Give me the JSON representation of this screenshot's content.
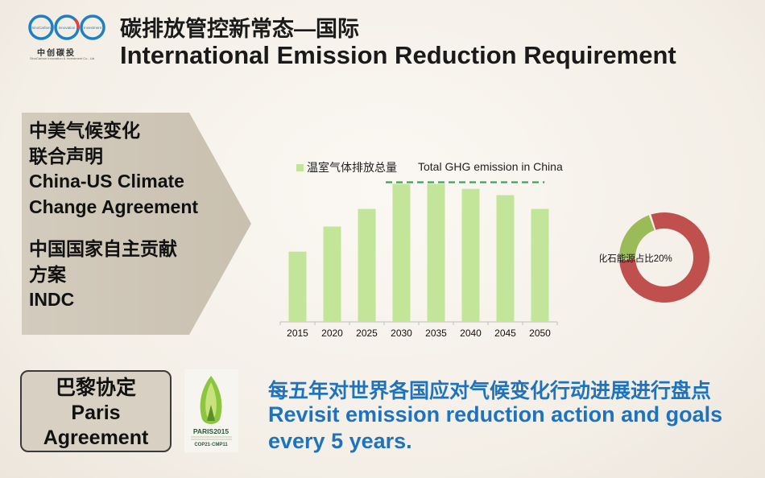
{
  "logo": {
    "ring_words": [
      "SinoCarbon",
      "Innovation",
      "Investment"
    ],
    "name_cn": "中创碳投",
    "name_en": "SinoCarbon Innovation & Investment Co., Ltd"
  },
  "title": {
    "cn": "碳排放管控新常态—国际",
    "en": "International Emission Reduction Requirement"
  },
  "arrow": {
    "lines_top": [
      "中美气候变化",
      "联合声明",
      "China-US Climate",
      "Change Agreement"
    ],
    "lines_bottom": [
      "中国国家自主贡献",
      "方案",
      "INDC"
    ]
  },
  "chart_data": {
    "type": "bar",
    "legend_cn": "温室气体排放总量",
    "legend_en": "Total GHG emission in China",
    "categories": [
      "2015",
      "2020",
      "2025",
      "2030",
      "2035",
      "2040",
      "2045",
      "2050"
    ],
    "values": [
      56,
      76,
      90,
      110,
      110,
      106,
      101,
      90
    ],
    "ylim": [
      0,
      118
    ],
    "peak_line_value": 110,
    "bar_color": "#c3e59a",
    "peak_line_color": "#34a853"
  },
  "donut": {
    "label": "非化石能源占比20%",
    "share": 0.2,
    "main_color": "#c0504d",
    "share_color": "#9bbb59"
  },
  "paris": {
    "label_lines": [
      "巴黎协定",
      "Paris",
      "Agreement"
    ],
    "logo_text": "PARIS2015",
    "logo_sub": "COP21·CMP11"
  },
  "bottom": {
    "cn": "每五年对世界各国应对气候变化行动进展进行盘点",
    "en_lines": [
      "Revisit emission reduction action and goals",
      "every 5 years."
    ]
  }
}
